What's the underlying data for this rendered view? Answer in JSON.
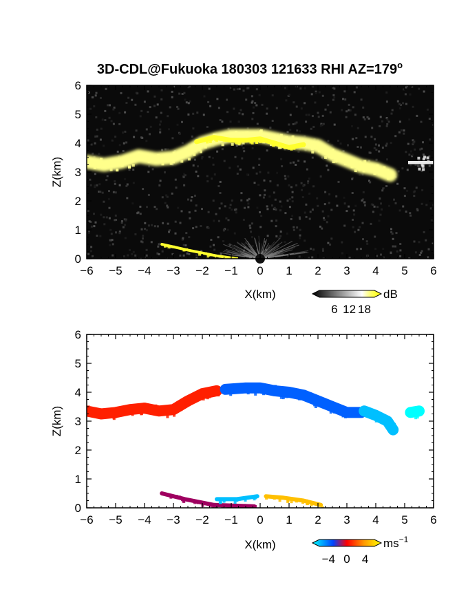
{
  "chart_data": [
    {
      "type": "heatmap",
      "title": "3D-CDL@Fukuoka 180303 121633 RHI AZ=179",
      "title_superscript": "o",
      "xlabel": "X(km)",
      "ylabel": "Z(km)",
      "xlim": [
        -6,
        6
      ],
      "ylim": [
        0,
        6
      ],
      "xticks": [
        "-6",
        "-5",
        "-4",
        "-3",
        "-2",
        "-1",
        "0",
        "1",
        "2",
        "3",
        "4",
        "5",
        "6"
      ],
      "yticks": [
        "0",
        "1",
        "2",
        "3",
        "4",
        "5",
        "6"
      ],
      "background": "#0a0a0a",
      "colorbar": {
        "label": "dB",
        "ticks": [
          "6",
          "12",
          "18"
        ],
        "range": [
          0,
          22
        ],
        "colors": [
          "#000000",
          "#ffffff",
          "#ffff00"
        ]
      },
      "features": [
        {
          "kind": "cloud-band",
          "points": [
            [
              -6,
              3.35
            ],
            [
              -5.4,
              3.25
            ],
            [
              -4.8,
              3.35
            ],
            [
              -4.2,
              3.55
            ],
            [
              -3.6,
              3.45
            ],
            [
              -3.0,
              3.5
            ],
            [
              -2.5,
              3.7
            ],
            [
              -2.0,
              4.0
            ],
            [
              -1.5,
              4.15
            ],
            [
              -1.0,
              4.25
            ],
            [
              -0.5,
              4.25
            ],
            [
              0,
              4.25
            ],
            [
              0.5,
              4.15
            ],
            [
              1.0,
              4.05
            ],
            [
              1.5,
              4.0
            ],
            [
              2.0,
              3.9
            ],
            [
              2.5,
              3.6
            ],
            [
              3.0,
              3.4
            ],
            [
              3.5,
              3.2
            ],
            [
              4.0,
              3.1
            ],
            [
              4.5,
              2.9
            ]
          ],
          "value": 16
        },
        {
          "kind": "cloud-band",
          "points": [
            [
              5.2,
              3.35
            ],
            [
              5.6,
              3.35
            ],
            [
              6.0,
              3.3
            ]
          ],
          "value": 10
        },
        {
          "kind": "strong-echo",
          "points": [
            [
              -2.2,
              4.05
            ],
            [
              -1.6,
              4.2
            ],
            [
              -1.0,
              4.1
            ],
            [
              -0.5,
              4.1
            ],
            [
              0,
              4.15
            ],
            [
              0.5,
              4.0
            ],
            [
              1.0,
              3.85
            ],
            [
              1.5,
              3.95
            ]
          ],
          "value": 20
        },
        {
          "kind": "surface-echo",
          "points": [
            [
              -3.4,
              0.5
            ],
            [
              -2.5,
              0.3
            ],
            [
              -1.5,
              0.1
            ],
            [
              -0.8,
              0.0
            ]
          ],
          "value": 20
        },
        {
          "kind": "near-field-fan",
          "origin": [
            0,
            0
          ],
          "radius_km": 1.8,
          "value": 8
        }
      ]
    },
    {
      "type": "heatmap",
      "xlabel": "X(km)",
      "ylabel": "Z(km)",
      "xlim": [
        -6,
        6
      ],
      "ylim": [
        0,
        6
      ],
      "xticks": [
        "-6",
        "-5",
        "-4",
        "-3",
        "-2",
        "-1",
        "0",
        "1",
        "2",
        "3",
        "4",
        "5",
        "6"
      ],
      "yticks": [
        "0",
        "1",
        "2",
        "3",
        "4",
        "5",
        "6"
      ],
      "background": "#ffffff",
      "colorbar": {
        "label": "ms",
        "label_superscript": "−1",
        "ticks": [
          "−4",
          "0",
          "4"
        ],
        "range": [
          -6,
          6
        ],
        "colors": [
          "#00ffff",
          "#0000ff",
          "#ff0000",
          "#ffff00"
        ]
      },
      "features": [
        {
          "kind": "velocity-band",
          "points": [
            [
              -6.0,
              3.35
            ],
            [
              -5.5,
              3.25
            ],
            [
              -5.0,
              3.3
            ],
            [
              -4.5,
              3.4
            ],
            [
              -4.0,
              3.45
            ],
            [
              -3.5,
              3.35
            ],
            [
              -3.0,
              3.4
            ],
            [
              -2.5,
              3.7
            ],
            [
              -2.0,
              3.95
            ],
            [
              -1.5,
              4.05
            ]
          ],
          "value": 2.5
        },
        {
          "kind": "velocity-band",
          "points": [
            [
              -1.2,
              4.1
            ],
            [
              -0.5,
              4.15
            ],
            [
              0,
              4.15
            ],
            [
              0.5,
              4.05
            ],
            [
              1.0,
              4.0
            ],
            [
              1.5,
              3.9
            ],
            [
              2.0,
              3.7
            ],
            [
              2.5,
              3.5
            ],
            [
              3.0,
              3.3
            ],
            [
              3.5,
              3.3
            ]
          ],
          "value": -3.5
        },
        {
          "kind": "velocity-band",
          "points": [
            [
              3.6,
              3.35
            ],
            [
              4.0,
              3.2
            ],
            [
              4.4,
              3.0
            ],
            [
              4.6,
              2.7
            ]
          ],
          "value": -5
        },
        {
          "kind": "velocity-band",
          "points": [
            [
              5.2,
              3.3
            ],
            [
              5.5,
              3.35
            ]
          ],
          "value": -6
        },
        {
          "kind": "surface-flow",
          "points": [
            [
              -3.4,
              0.5
            ],
            [
              -2.6,
              0.3
            ],
            [
              -1.6,
              0.1
            ],
            [
              -0.2,
              0.05
            ]
          ],
          "value": 0.5
        },
        {
          "kind": "surface-flow",
          "points": [
            [
              -1.5,
              0.3
            ],
            [
              -0.8,
              0.3
            ],
            [
              -0.1,
              0.4
            ]
          ],
          "value": -5
        },
        {
          "kind": "surface-flow",
          "points": [
            [
              0.2,
              0.4
            ],
            [
              0.8,
              0.35
            ],
            [
              1.5,
              0.25
            ],
            [
              2.1,
              0.1
            ]
          ],
          "value": 5
        }
      ]
    }
  ]
}
